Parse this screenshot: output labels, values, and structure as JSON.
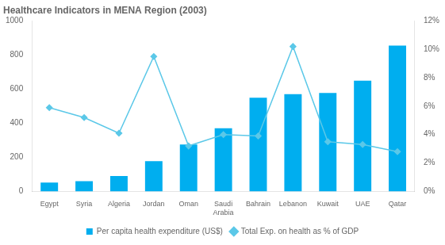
{
  "chart_data": {
    "type": "bar",
    "title": "Healthcare Indicators in MENA Region (2003)",
    "categories": [
      "Egypt",
      "Syria",
      "Algeria",
      "Jordan",
      "Oman",
      "Saudi\nArabia",
      "Bahrain",
      "Lebanon",
      "Kuwait",
      "UAE",
      "Qatar"
    ],
    "series": [
      {
        "name": "Per capita health expenditure (US$)",
        "type": "bar",
        "color": "#00AEEF",
        "values": [
          52,
          60,
          90,
          178,
          275,
          370,
          550,
          570,
          578,
          650,
          855
        ]
      },
      {
        "name": "Total Exp. on health as % of GDP",
        "type": "line",
        "color": "#5BC8E8",
        "marker": "diamond",
        "axis": "y2",
        "values": [
          5.9,
          5.2,
          4.1,
          9.5,
          3.2,
          4.0,
          3.9,
          10.2,
          3.5,
          3.3,
          2.8
        ]
      }
    ],
    "ylim": [
      0,
      1000
    ],
    "yticks": [
      0,
      200,
      400,
      600,
      800,
      1000
    ],
    "y2lim": [
      0,
      12
    ],
    "y2ticks": [
      {
        "value": 0,
        "label": "0%"
      },
      {
        "value": 2,
        "label": "2%"
      },
      {
        "value": 4,
        "label": "4%"
      },
      {
        "value": 6,
        "label": "6%"
      },
      {
        "value": 8,
        "label": "8%"
      },
      {
        "value": 10,
        "label": "10%"
      },
      {
        "value": 12,
        "label": "12%"
      }
    ],
    "grid": false,
    "legend": "bottom"
  }
}
